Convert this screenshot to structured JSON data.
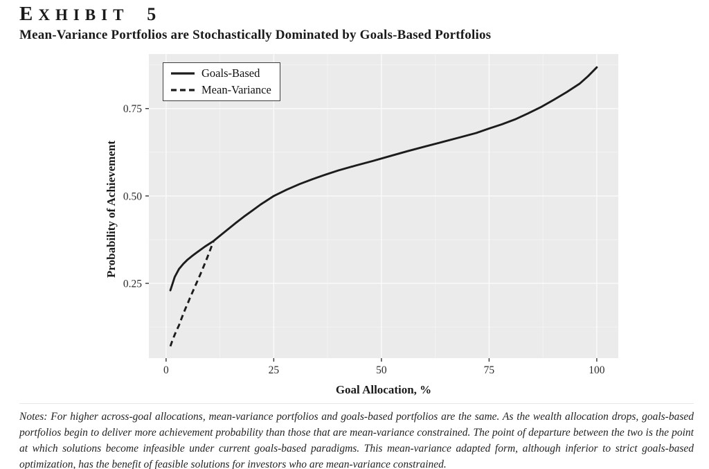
{
  "header": {
    "exhibit_word": "EXHIBIT",
    "exhibit_number": "5",
    "title": "Mean-Variance Portfolios are Stochastically Dominated by Goals-Based Portfolios"
  },
  "notes": {
    "text": "Notes: For higher across-goal allocations, mean-variance portfolios and goals-based portfolios are the same. As the wealth allocation drops, goals-based portfolios begin to deliver more achievement probability than those that are mean-variance constrained. The point of departure between the two is the point at which solutions become infeasible under current goals-based paradigms. This mean-variance adapted form, although inferior to strict goals-based optimization, has the benefit of feasible solutions for investors who are mean-variance constrained."
  },
  "colors": {
    "panel_bg": "#ebebeb",
    "grid_major": "#fafafa",
    "grid_minor": "#f3f3f3",
    "line": "#1c1c1c",
    "tick_mark": "#333333"
  },
  "chart_data": {
    "type": "line",
    "title": "",
    "xlabel": "Goal Allocation, %",
    "ylabel": "Probability of Achievement",
    "xlim": [
      -4,
      105
    ],
    "ylim": [
      0.036,
      0.906
    ],
    "grid": true,
    "legend_position": "top-left",
    "x_ticks": [
      0,
      25,
      50,
      75,
      100
    ],
    "x_tick_labels": [
      "0",
      "25",
      "50",
      "75",
      "100"
    ],
    "x_minor_ticks": [
      12.5,
      37.5,
      62.5,
      87.5
    ],
    "y_ticks": [
      0.25,
      0.5,
      0.75
    ],
    "y_tick_labels": [
      "0.25",
      "0.50",
      "0.75"
    ],
    "y_minor_ticks": [
      0.125,
      0.375,
      0.625,
      0.875
    ],
    "series": [
      {
        "name": "Goals-Based",
        "line_style": "solid",
        "x": [
          1,
          2,
          3,
          4,
          5,
          6,
          7,
          8,
          9,
          10,
          11,
          12,
          14,
          16,
          18,
          20,
          22,
          25,
          28,
          31,
          34,
          37,
          40,
          44,
          48,
          52,
          56,
          60,
          64,
          68,
          72,
          75,
          78,
          81,
          84,
          87,
          90,
          93,
          96,
          98,
          100
        ],
        "y": [
          0.23,
          0.268,
          0.291,
          0.306,
          0.318,
          0.328,
          0.337,
          0.346,
          0.355,
          0.363,
          0.371,
          0.381,
          0.401,
          0.421,
          0.44,
          0.458,
          0.476,
          0.5,
          0.518,
          0.534,
          0.548,
          0.561,
          0.573,
          0.587,
          0.6,
          0.614,
          0.628,
          0.641,
          0.654,
          0.667,
          0.68,
          0.693,
          0.705,
          0.719,
          0.736,
          0.754,
          0.775,
          0.797,
          0.821,
          0.843,
          0.868
        ]
      },
      {
        "name": "Mean-Variance",
        "line_style": "dashed",
        "x": [
          1,
          1.5,
          2,
          2.5,
          3,
          3.5,
          4,
          4.5,
          5,
          5.5,
          6,
          6.5,
          7,
          7.5,
          8,
          8.5,
          9,
          9.5,
          10,
          10.5,
          11
        ],
        "y": [
          0.07,
          0.088,
          0.103,
          0.117,
          0.13,
          0.147,
          0.163,
          0.178,
          0.192,
          0.207,
          0.221,
          0.235,
          0.249,
          0.263,
          0.277,
          0.292,
          0.307,
          0.322,
          0.338,
          0.354,
          0.37
        ]
      }
    ]
  }
}
